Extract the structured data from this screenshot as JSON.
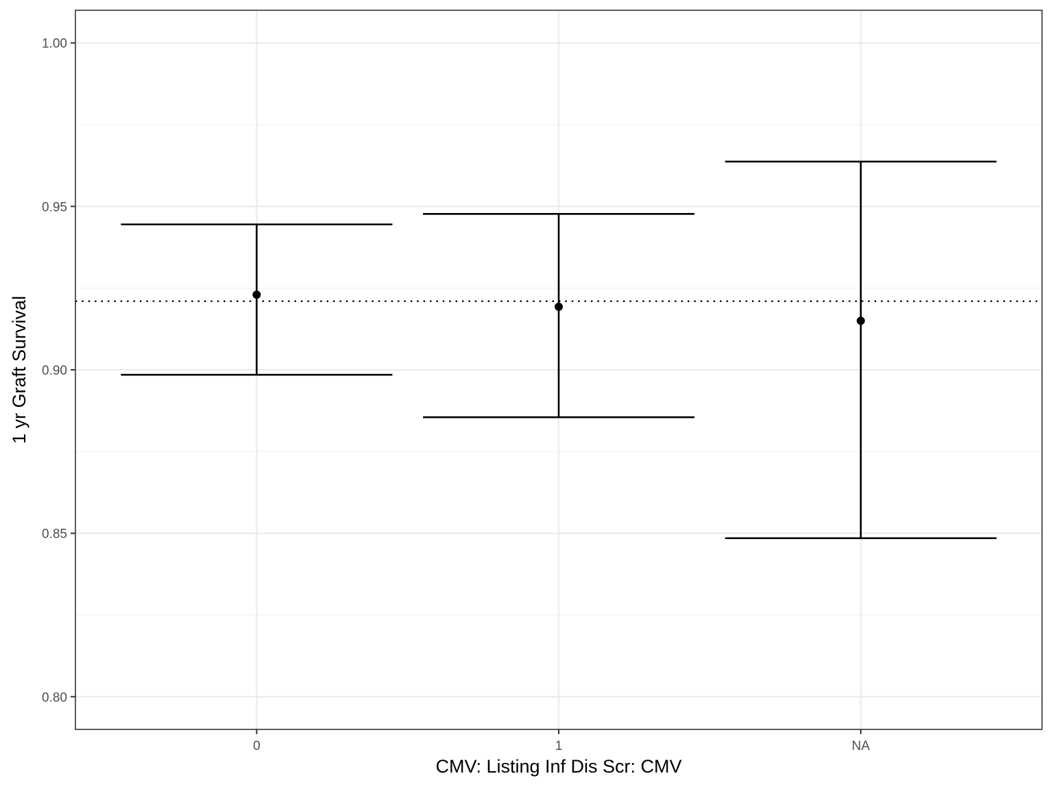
{
  "chart_data": {
    "type": "errorbar",
    "title": "",
    "xlabel": "CMV: Listing Inf Dis Scr: CMV",
    "ylabel": "1 yr Graft Survival",
    "categories": [
      "0",
      "1",
      "NA"
    ],
    "estimates": [
      0.923,
      0.9193,
      0.915
    ],
    "lower": [
      0.8985,
      0.8855,
      0.8485
    ],
    "upper": [
      0.9445,
      0.9477,
      0.9637
    ],
    "reference_line": 0.921,
    "ylim": [
      0.79,
      1.01
    ],
    "yticks": [
      0.8,
      0.85,
      0.9,
      0.95,
      1.0
    ],
    "ytick_labels": [
      "0.80",
      "0.85",
      "0.90",
      "0.95",
      "1.00"
    ],
    "grid": true,
    "legend": "none"
  },
  "colors": {
    "background": "#ffffff",
    "grid": "#ebebeb",
    "marks": "#000000",
    "tick_text": "#4d4d4d"
  }
}
